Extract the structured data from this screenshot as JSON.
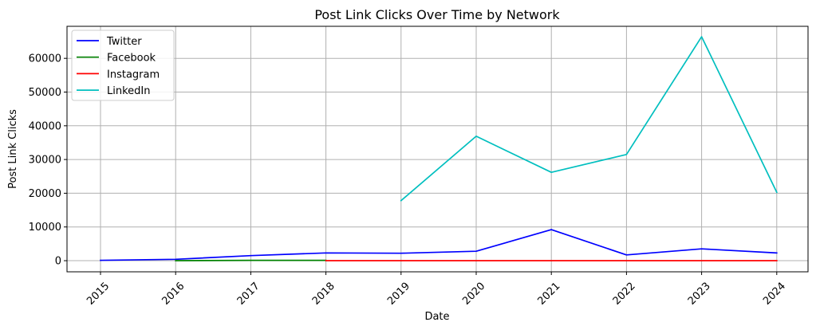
{
  "chart_data": {
    "type": "line",
    "title": "Post Link Clicks Over Time by Network",
    "xlabel": "Date",
    "ylabel": "Post Link Clicks",
    "x": [
      "2015",
      "2016",
      "2017",
      "2018",
      "2019",
      "2020",
      "2021",
      "2022",
      "2023",
      "2024"
    ],
    "xticks": [
      "2015",
      "2016",
      "2017",
      "2018",
      "2019",
      "2020",
      "2021",
      "2022",
      "2023",
      "2024"
    ],
    "yticks": [
      0,
      10000,
      20000,
      30000,
      40000,
      50000,
      60000
    ],
    "ytick_labels": [
      "0",
      "10000",
      "20000",
      "30000",
      "40000",
      "50000",
      "60000"
    ],
    "ylim": [
      -3300,
      69500
    ],
    "grid": true,
    "legend_position": "top-left",
    "series": [
      {
        "name": "Twitter",
        "color": "#0000ff",
        "x": [
          "2015",
          "2016",
          "2017",
          "2018",
          "2019",
          "2020",
          "2021",
          "2022",
          "2023",
          "2024"
        ],
        "values": [
          100,
          400,
          1500,
          2300,
          2200,
          2800,
          9200,
          1700,
          3500,
          2300
        ]
      },
      {
        "name": "Facebook",
        "color": "#008000",
        "x": [
          "2016",
          "2017",
          "2018"
        ],
        "values": [
          0,
          100,
          100
        ]
      },
      {
        "name": "Instagram",
        "color": "#ff0000",
        "x": [
          "2018",
          "2019",
          "2020",
          "2021",
          "2022",
          "2023",
          "2024"
        ],
        "values": [
          0,
          0,
          0,
          0,
          0,
          0,
          0
        ]
      },
      {
        "name": "LinkedIn",
        "color": "#00bfbf",
        "x": [
          "2019",
          "2020",
          "2021",
          "2022",
          "2023",
          "2024"
        ],
        "values": [
          17800,
          36900,
          26200,
          31500,
          66400,
          20300
        ]
      }
    ]
  }
}
